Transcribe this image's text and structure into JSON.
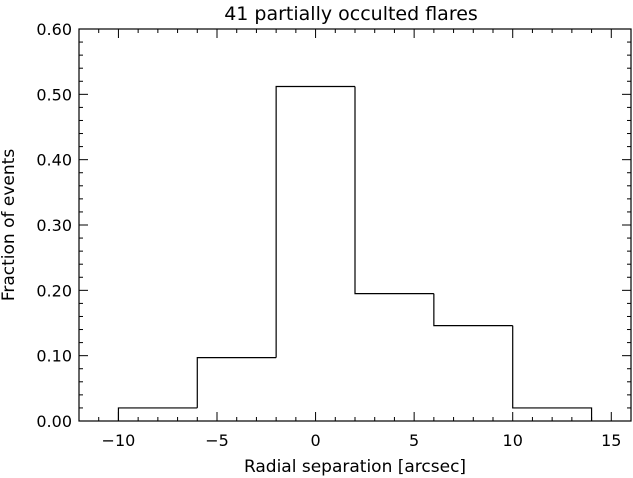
{
  "chart_data": {
    "type": "bar",
    "title": "41 partially occulted flares",
    "xlabel": "Radial separation [arcsec]",
    "ylabel": "Fraction of events",
    "xlim": [
      -12,
      16
    ],
    "ylim": [
      0.0,
      0.6
    ],
    "x_ticks": [
      -10,
      -5,
      0,
      5,
      10,
      15
    ],
    "x_tick_labels": [
      "−10",
      "−5",
      "0",
      "5",
      "10",
      "15"
    ],
    "y_ticks": [
      0.0,
      0.1,
      0.2,
      0.3,
      0.4,
      0.5,
      0.6
    ],
    "y_tick_labels": [
      "0.00",
      "0.10",
      "0.20",
      "0.30",
      "0.40",
      "0.50",
      "0.60"
    ],
    "bin_edges": [
      -10,
      -6,
      -2,
      2,
      6,
      10,
      14
    ],
    "values": [
      0.02,
      0.097,
      0.512,
      0.195,
      0.146,
      0.02
    ],
    "grid": false,
    "style": "step histogram"
  }
}
